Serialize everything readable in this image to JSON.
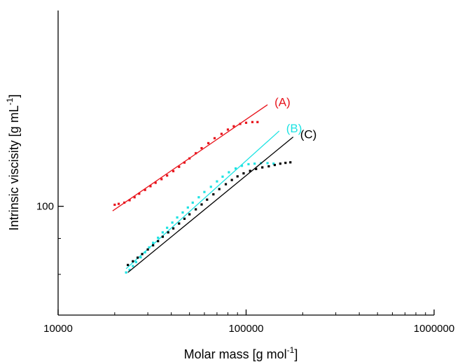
{
  "chart_data": {
    "type": "scatter",
    "xlabel": "Molar mass [g mol",
    "xlabel_sup": "-1",
    "xlabel_end": "]",
    "ylabel": "Intrinsic viscisity [g mL",
    "ylabel_sup": "-1",
    "ylabel_end": "]",
    "xscale": "log",
    "yscale": "log",
    "xlim": [
      10000,
      1000000
    ],
    "ylim": [
      70,
      190
    ],
    "xticks": [
      10000,
      100000,
      1000000
    ],
    "xtick_labels": [
      "10000",
      "100000",
      "1000000"
    ],
    "yticks": [
      100
    ],
    "ytick_labels": [
      "100"
    ],
    "series": [
      {
        "name": "(A)",
        "color": "#e8141c",
        "points": [
          [
            20000,
            100.5
          ],
          [
            21000,
            100.8
          ],
          [
            22500,
            101.2
          ],
          [
            24000,
            102.0
          ],
          [
            25500,
            103.0
          ],
          [
            27000,
            104.2
          ],
          [
            29000,
            105.5
          ],
          [
            31000,
            106.8
          ],
          [
            33000,
            108.0
          ],
          [
            35500,
            109.3
          ],
          [
            38000,
            110.6
          ],
          [
            41000,
            112.2
          ],
          [
            44000,
            113.8
          ],
          [
            47000,
            115.4
          ],
          [
            50000,
            117.0
          ],
          [
            54000,
            119.0
          ],
          [
            58000,
            121.0
          ],
          [
            63000,
            123.0
          ],
          [
            68000,
            125.0
          ],
          [
            74000,
            126.8
          ],
          [
            80000,
            128.6
          ],
          [
            86000,
            130.0
          ],
          [
            93000,
            131.0
          ],
          [
            100000,
            131.5
          ],
          [
            108000,
            131.8
          ],
          [
            115000,
            131.8
          ]
        ],
        "fit": [
          [
            19500,
            98.5
          ],
          [
            130000,
            139.5
          ]
        ]
      },
      {
        "name": "(B)",
        "color": "#1ee3e3",
        "points": [
          [
            23000,
            80.5
          ],
          [
            24000,
            81.2
          ],
          [
            25000,
            82.2
          ],
          [
            26000,
            83.3
          ],
          [
            27500,
            84.6
          ],
          [
            29000,
            86.0
          ],
          [
            30500,
            87.4
          ],
          [
            32000,
            88.7
          ],
          [
            34000,
            90.2
          ],
          [
            36000,
            91.8
          ],
          [
            38000,
            93.2
          ],
          [
            40500,
            94.8
          ],
          [
            43000,
            96.4
          ],
          [
            46000,
            98.0
          ],
          [
            49000,
            99.6
          ],
          [
            52000,
            101.2
          ],
          [
            56000,
            103.0
          ],
          [
            60000,
            104.8
          ],
          [
            65000,
            106.6
          ],
          [
            70000,
            108.5
          ],
          [
            75000,
            110.2
          ],
          [
            81000,
            111.8
          ],
          [
            88000,
            113.2
          ],
          [
            95000,
            114.2
          ],
          [
            103000,
            114.8
          ],
          [
            111000,
            115.0
          ],
          [
            120000,
            115.2
          ],
          [
            130000,
            115.2
          ],
          [
            140000,
            115.0
          ]
        ],
        "fit": [
          [
            23000,
            81.5
          ],
          [
            150000,
            128.0
          ]
        ]
      },
      {
        "name": "(C)",
        "color": "#000000",
        "points": [
          [
            23500,
            82.5
          ],
          [
            25000,
            83.5
          ],
          [
            26500,
            84.5
          ],
          [
            28000,
            85.5
          ],
          [
            30000,
            86.8
          ],
          [
            32000,
            88.0
          ],
          [
            34000,
            89.2
          ],
          [
            36000,
            90.5
          ],
          [
            38500,
            91.8
          ],
          [
            41000,
            93.0
          ],
          [
            44000,
            94.5
          ],
          [
            47000,
            96.0
          ],
          [
            50000,
            97.4
          ],
          [
            54000,
            99.0
          ],
          [
            58000,
            100.6
          ],
          [
            62000,
            102.2
          ],
          [
            67000,
            104.0
          ],
          [
            72000,
            105.8
          ],
          [
            78000,
            107.5
          ],
          [
            84000,
            109.0
          ],
          [
            90000,
            110.3
          ],
          [
            97000,
            111.4
          ],
          [
            105000,
            112.3
          ],
          [
            113000,
            113.0
          ],
          [
            122000,
            113.6
          ],
          [
            132000,
            114.0
          ],
          [
            142000,
            114.5
          ],
          [
            152000,
            115.0
          ],
          [
            162000,
            115.3
          ],
          [
            172000,
            115.5
          ]
        ],
        "fit": [
          [
            23500,
            80.5
          ],
          [
            178000,
            125.5
          ]
        ]
      }
    ]
  }
}
